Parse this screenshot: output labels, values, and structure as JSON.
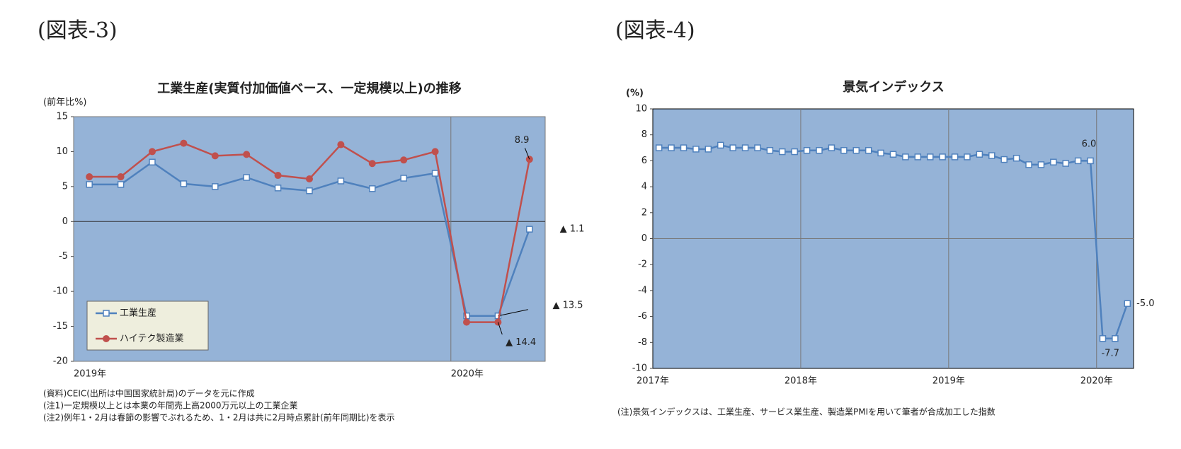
{
  "chart_data": [
    {
      "type": "line",
      "figure_label": "(図表-3)",
      "title": "工業生産(実質付加価値ベース、一定規模以上)の推移",
      "y_label": "(前年比%)",
      "categories": [
        "2019年",
        null,
        null,
        null,
        null,
        null,
        null,
        null,
        null,
        null,
        null,
        null,
        "2020年",
        null,
        null
      ],
      "series": [
        {
          "name": "工業生産",
          "color": "#4f81bd",
          "marker": "square",
          "values": [
            5.3,
            5.3,
            8.5,
            5.4,
            5.0,
            6.3,
            4.8,
            4.4,
            5.8,
            4.7,
            6.2,
            6.9,
            -13.5,
            -13.5,
            -1.1
          ],
          "value_labels": [
            null,
            null,
            null,
            null,
            null,
            null,
            null,
            null,
            null,
            null,
            null,
            null,
            null,
            "▲ 13.5",
            "▲ 1.1"
          ]
        },
        {
          "name": "ハイテク製造業",
          "color": "#c0504d",
          "marker": "circle",
          "values": [
            6.4,
            6.4,
            10.0,
            11.2,
            9.4,
            9.6,
            6.6,
            6.1,
            11.0,
            8.3,
            8.8,
            10.0,
            -14.4,
            -14.4,
            8.9
          ],
          "value_labels": [
            null,
            null,
            null,
            null,
            null,
            null,
            null,
            null,
            null,
            null,
            null,
            null,
            null,
            "▲ 14.4",
            "8.9"
          ]
        }
      ],
      "ylim": [
        -20,
        15
      ],
      "yticks": [
        -20,
        -15,
        -10,
        -5,
        0,
        5,
        10,
        15
      ],
      "grid": false,
      "legend": "lower left",
      "notes": [
        "(資料)CEIC(出所は中国国家統計局)のデータを元に作成",
        "(注1)一定規模以上とは本業の年間売上高2000万元以上の工業企業",
        "(注2)例年1・2月は春節の影響でぶれるため、1・2月は共に2月時点累計(前年同期比)を表示"
      ]
    },
    {
      "type": "line",
      "figure_label": "(図表-4)",
      "title": "景気インデックス",
      "y_label": "(%)",
      "categories": [
        "2017年",
        null,
        null,
        null,
        null,
        null,
        null,
        null,
        null,
        null,
        null,
        null,
        "2018年",
        null,
        null,
        null,
        null,
        null,
        null,
        null,
        null,
        null,
        null,
        null,
        "2019年",
        null,
        null,
        null,
        null,
        null,
        null,
        null,
        null,
        null,
        null,
        null,
        "2020年",
        null,
        null
      ],
      "series": [
        {
          "color": "#4f81bd",
          "marker": "square",
          "values": [
            7.0,
            7.0,
            7.0,
            6.9,
            6.9,
            7.2,
            7.0,
            7.0,
            7.0,
            6.8,
            6.7,
            6.7,
            6.8,
            6.8,
            7.0,
            6.8,
            6.8,
            6.8,
            6.6,
            6.5,
            6.3,
            6.3,
            6.3,
            6.3,
            6.3,
            6.3,
            6.5,
            6.4,
            6.1,
            6.2,
            5.7,
            5.7,
            5.9,
            5.8,
            6.0,
            6.0,
            -7.7,
            -7.7,
            -5.0
          ],
          "value_labels": [
            null,
            null,
            null,
            null,
            null,
            null,
            null,
            null,
            null,
            null,
            null,
            null,
            null,
            null,
            null,
            null,
            null,
            null,
            null,
            null,
            null,
            null,
            null,
            null,
            null,
            null,
            null,
            null,
            null,
            null,
            null,
            null,
            null,
            null,
            null,
            "6.0",
            "-7.7",
            null,
            "-5.0"
          ]
        }
      ],
      "ylim": [
        -10,
        10
      ],
      "yticks": [
        -10,
        -8,
        -6,
        -4,
        -2,
        0,
        2,
        4,
        6,
        8,
        10
      ],
      "grid": false,
      "notes": [
        "(注)景気インデックスは、工業生産、サービス業生産、製造業PMIを用いて筆者が合成加工した指数"
      ]
    }
  ]
}
